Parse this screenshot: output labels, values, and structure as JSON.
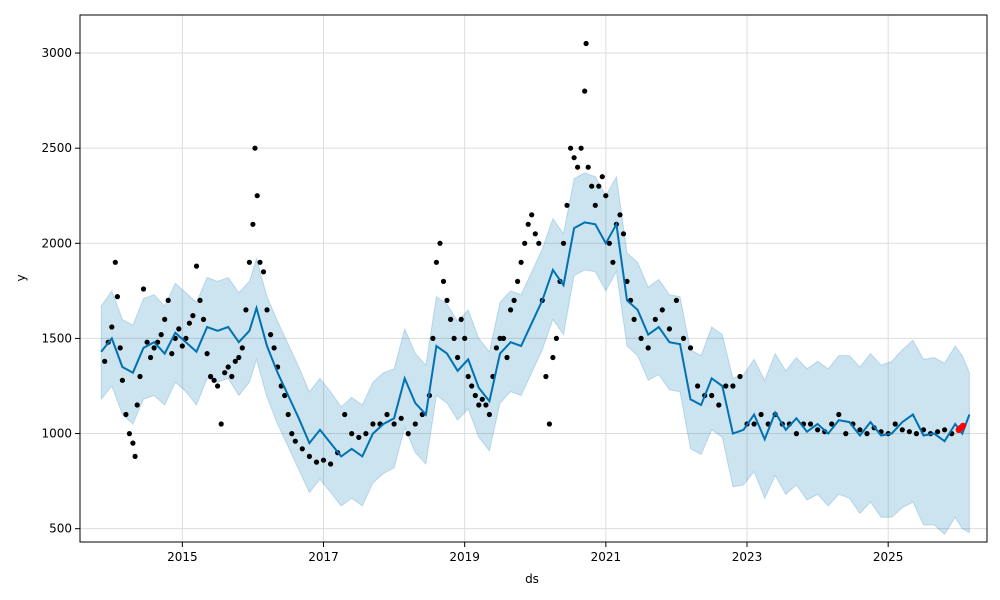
{
  "chart_data": {
    "type": "line",
    "xlabel": "ds",
    "ylabel": "y",
    "xlim": [
      2013.55,
      2026.4
    ],
    "ylim": [
      430,
      3200
    ],
    "x_ticks": [
      2015,
      2017,
      2019,
      2021,
      2023,
      2025
    ],
    "x_tick_labels": [
      "2015",
      "2017",
      "2019",
      "2021",
      "2023",
      "2025"
    ],
    "y_ticks": [
      500,
      1000,
      1500,
      2000,
      2500,
      3000
    ],
    "y_tick_labels": [
      "500",
      "1000",
      "1500",
      "2000",
      "2500",
      "3000"
    ],
    "grid": true,
    "colors": {
      "forecast_line": "#0072B2",
      "uncertainty_band": "#0072B2",
      "observed_points": "#000000",
      "highlight_points": "#ff0000",
      "grid": "#dddddd"
    },
    "forecast": {
      "x": [
        2013.85,
        2014.0,
        2014.15,
        2014.3,
        2014.45,
        2014.6,
        2014.75,
        2014.9,
        2015.05,
        2015.2,
        2015.35,
        2015.5,
        2015.65,
        2015.8,
        2015.95,
        2016.05,
        2016.2,
        2016.35,
        2016.5,
        2016.65,
        2016.8,
        2016.95,
        2017.1,
        2017.25,
        2017.4,
        2017.55,
        2017.7,
        2017.85,
        2018.0,
        2018.15,
        2018.3,
        2018.45,
        2018.6,
        2018.75,
        2018.9,
        2019.05,
        2019.2,
        2019.35,
        2019.5,
        2019.65,
        2019.8,
        2019.95,
        2020.1,
        2020.25,
        2020.4,
        2020.55,
        2020.7,
        2020.85,
        2021.0,
        2021.15,
        2021.3,
        2021.45,
        2021.6,
        2021.75,
        2021.9,
        2022.05,
        2022.2,
        2022.35,
        2022.5,
        2022.65,
        2022.8,
        2022.95,
        2023.1,
        2023.25,
        2023.4,
        2023.55,
        2023.7,
        2023.85,
        2024.0,
        2024.15,
        2024.3,
        2024.45,
        2024.6,
        2024.75,
        2024.9,
        2025.05,
        2025.2,
        2025.35,
        2025.5,
        2025.65,
        2025.8,
        2025.95,
        2026.05,
        2026.15
      ],
      "yhat": [
        1430,
        1500,
        1350,
        1320,
        1450,
        1480,
        1420,
        1530,
        1480,
        1430,
        1560,
        1540,
        1560,
        1480,
        1540,
        1660,
        1460,
        1320,
        1200,
        1080,
        950,
        1020,
        950,
        880,
        920,
        880,
        1000,
        1050,
        1080,
        1290,
        1160,
        1100,
        1460,
        1420,
        1330,
        1390,
        1240,
        1170,
        1420,
        1480,
        1460,
        1580,
        1700,
        1860,
        1780,
        2080,
        2110,
        2100,
        2000,
        2100,
        1700,
        1650,
        1520,
        1560,
        1480,
        1470,
        1180,
        1150,
        1290,
        1250,
        1000,
        1020,
        1100,
        970,
        1110,
        1020,
        1080,
        1010,
        1050,
        1000,
        1070,
        1060,
        990,
        1060,
        990,
        1000,
        1060,
        1100,
        990,
        1000,
        960,
        1050,
        1000,
        1100
      ],
      "yhat_lower": [
        1180,
        1250,
        1100,
        1050,
        1180,
        1200,
        1150,
        1270,
        1220,
        1150,
        1290,
        1270,
        1290,
        1200,
        1270,
        1390,
        1190,
        1050,
        930,
        810,
        690,
        760,
        690,
        620,
        660,
        620,
        740,
        790,
        820,
        1030,
        900,
        840,
        1200,
        1160,
        1070,
        1130,
        980,
        910,
        1160,
        1220,
        1200,
        1320,
        1440,
        1600,
        1520,
        1830,
        1860,
        1850,
        1750,
        1850,
        1460,
        1410,
        1280,
        1310,
        1230,
        1220,
        920,
        890,
        1020,
        980,
        720,
        730,
        800,
        660,
        780,
        680,
        730,
        650,
        680,
        620,
        680,
        660,
        580,
        640,
        560,
        560,
        610,
        640,
        520,
        520,
        470,
        560,
        500,
        480
      ],
      "yhat_upper": [
        1670,
        1750,
        1600,
        1570,
        1710,
        1730,
        1670,
        1790,
        1740,
        1690,
        1820,
        1800,
        1820,
        1740,
        1800,
        1920,
        1720,
        1590,
        1470,
        1350,
        1220,
        1290,
        1220,
        1140,
        1190,
        1150,
        1270,
        1320,
        1340,
        1550,
        1420,
        1360,
        1720,
        1680,
        1590,
        1650,
        1500,
        1430,
        1690,
        1750,
        1730,
        1850,
        1970,
        2130,
        2050,
        2340,
        2370,
        2350,
        2250,
        2350,
        1950,
        1900,
        1770,
        1810,
        1730,
        1720,
        1440,
        1410,
        1560,
        1520,
        1290,
        1310,
        1390,
        1280,
        1420,
        1330,
        1400,
        1340,
        1380,
        1340,
        1410,
        1410,
        1350,
        1420,
        1360,
        1380,
        1440,
        1490,
        1390,
        1400,
        1370,
        1460,
        1410,
        1320
      ]
    },
    "observed": {
      "x": [
        2013.9,
        2013.95,
        2014.0,
        2014.05,
        2014.08,
        2014.12,
        2014.15,
        2014.2,
        2014.25,
        2014.3,
        2014.33,
        2014.36,
        2014.4,
        2014.45,
        2014.5,
        2014.55,
        2014.6,
        2014.65,
        2014.7,
        2014.75,
        2014.8,
        2014.85,
        2014.9,
        2014.95,
        2015.0,
        2015.05,
        2015.1,
        2015.15,
        2015.2,
        2015.25,
        2015.3,
        2015.35,
        2015.4,
        2015.45,
        2015.5,
        2015.55,
        2015.6,
        2015.65,
        2015.7,
        2015.75,
        2015.8,
        2015.85,
        2015.9,
        2015.95,
        2016.0,
        2016.03,
        2016.06,
        2016.1,
        2016.15,
        2016.2,
        2016.25,
        2016.3,
        2016.35,
        2016.4,
        2016.45,
        2016.5,
        2016.55,
        2016.6,
        2016.7,
        2016.8,
        2016.9,
        2017.0,
        2017.1,
        2017.2,
        2017.3,
        2017.4,
        2017.5,
        2017.6,
        2017.7,
        2017.8,
        2017.9,
        2018.0,
        2018.1,
        2018.2,
        2018.3,
        2018.4,
        2018.5,
        2018.55,
        2018.6,
        2018.65,
        2018.7,
        2018.75,
        2018.8,
        2018.85,
        2018.9,
        2018.95,
        2019.0,
        2019.05,
        2019.1,
        2019.15,
        2019.2,
        2019.25,
        2019.3,
        2019.35,
        2019.4,
        2019.45,
        2019.5,
        2019.55,
        2019.6,
        2019.65,
        2019.7,
        2019.75,
        2019.8,
        2019.85,
        2019.9,
        2019.95,
        2020.0,
        2020.05,
        2020.1,
        2020.15,
        2020.2,
        2020.25,
        2020.3,
        2020.35,
        2020.4,
        2020.45,
        2020.5,
        2020.55,
        2020.6,
        2020.65,
        2020.7,
        2020.72,
        2020.75,
        2020.8,
        2020.85,
        2020.9,
        2020.95,
        2021.0,
        2021.05,
        2021.1,
        2021.15,
        2021.2,
        2021.25,
        2021.3,
        2021.35,
        2021.4,
        2021.5,
        2021.6,
        2021.7,
        2021.8,
        2021.9,
        2022.0,
        2022.1,
        2022.2,
        2022.3,
        2022.4,
        2022.5,
        2022.6,
        2022.7,
        2022.8,
        2022.9,
        2023.0,
        2023.1,
        2023.2,
        2023.3,
        2023.4,
        2023.5,
        2023.6,
        2023.7,
        2023.8,
        2023.9,
        2024.0,
        2024.1,
        2024.2,
        2024.3,
        2024.4,
        2024.5,
        2024.6,
        2024.7,
        2024.8,
        2024.9,
        2025.0,
        2025.1,
        2025.2,
        2025.3,
        2025.4,
        2025.5,
        2025.6,
        2025.7,
        2025.8,
        2025.9,
        2026.0
      ],
      "y": [
        1380,
        1480,
        1560,
        1900,
        1720,
        1450,
        1280,
        1100,
        1000,
        950,
        880,
        1150,
        1300,
        1760,
        1480,
        1400,
        1450,
        1480,
        1520,
        1600,
        1700,
        1420,
        1500,
        1550,
        1460,
        1500,
        1580,
        1620,
        1880,
        1700,
        1600,
        1420,
        1300,
        1280,
        1250,
        1050,
        1320,
        1350,
        1300,
        1380,
        1400,
        1450,
        1650,
        1900,
        2100,
        2500,
        2250,
        1900,
        1850,
        1650,
        1520,
        1450,
        1350,
        1250,
        1200,
        1100,
        1000,
        960,
        920,
        880,
        850,
        860,
        840,
        900,
        1100,
        1000,
        980,
        1000,
        1050,
        1050,
        1100,
        1050,
        1080,
        1000,
        1050,
        1100,
        1200,
        1500,
        1900,
        2000,
        1800,
        1700,
        1600,
        1500,
        1400,
        1600,
        1500,
        1300,
        1250,
        1200,
        1150,
        1180,
        1150,
        1100,
        1300,
        1450,
        1500,
        1500,
        1400,
        1650,
        1700,
        1800,
        1900,
        2000,
        2100,
        2150,
        2050,
        2000,
        1700,
        1300,
        1050,
        1400,
        1500,
        1800,
        2000,
        2200,
        2500,
        2450,
        2400,
        2500,
        2800,
        3050,
        2400,
        2300,
        2200,
        2300,
        2350,
        2250,
        2000,
        1900,
        2100,
        2150,
        2050,
        1800,
        1700,
        1600,
        1500,
        1450,
        1600,
        1650,
        1550,
        1700,
        1500,
        1450,
        1250,
        1200,
        1200,
        1150,
        1250,
        1250,
        1300,
        1050,
        1050,
        1100,
        1050,
        1100,
        1050,
        1050,
        1000,
        1050,
        1050,
        1020,
        1010,
        1050,
        1100,
        1000,
        1050,
        1020,
        1000,
        1030,
        1010,
        1000,
        1050,
        1020,
        1010,
        1000,
        1020,
        1000,
        1010,
        1020,
        1000,
        1020
      ],
      "highlight_x": [
        2026.0,
        2026.03,
        2026.06
      ],
      "highlight_y": [
        1020,
        1030,
        1040
      ]
    }
  }
}
